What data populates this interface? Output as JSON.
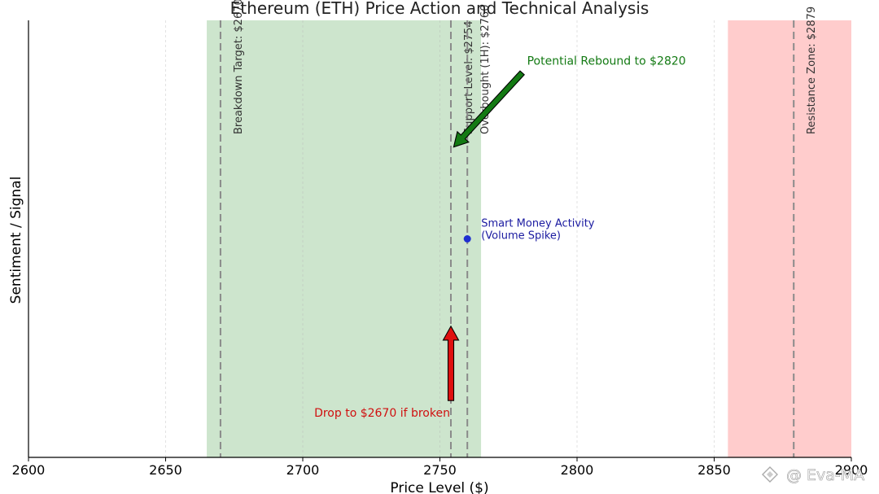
{
  "chart_data": {
    "type": "scatter",
    "title": "Ethereum (ETH) Price Action and Technical Analysis",
    "xlabel": "Price Level ($)",
    "ylabel": "Sentiment / Signal",
    "xlim": [
      2600,
      2900
    ],
    "ylim": [
      0,
      1
    ],
    "xticks": [
      2600,
      2650,
      2700,
      2750,
      2800,
      2850,
      2900
    ],
    "grid": true,
    "zones": [
      {
        "from": 2665,
        "to": 2765,
        "color": "#cde5cd"
      },
      {
        "from": 2855,
        "to": 2900,
        "color": "#ffcccc"
      }
    ],
    "vlines": [
      {
        "x": 2670,
        "label": "Breakdown Target: $2670"
      },
      {
        "x": 2754,
        "label": "Support Level: $2754"
      },
      {
        "x": 2760,
        "label": "Overbought (1H): $2760"
      },
      {
        "x": 2879,
        "label": "Resistance Zone: $2879"
      }
    ],
    "points": [
      {
        "x": 2760,
        "y": 0.5,
        "label_lines": [
          "Smart Money Activity",
          "(Volume Spike)"
        ],
        "color": "#1f2fd0"
      }
    ],
    "arrows": [
      {
        "text": "Potential Rebound to $2820",
        "color": "#137a13",
        "text_color": "#137a13",
        "from": [
          2780,
          0.88
        ],
        "to": [
          2755,
          0.71
        ]
      },
      {
        "text": "Drop to $2670 if broken",
        "color": "#e01010",
        "text_color": "#d01010",
        "from": [
          2754,
          0.13
        ],
        "to": [
          2754,
          0.3
        ]
      }
    ]
  },
  "watermark": "@ Eva-MA"
}
